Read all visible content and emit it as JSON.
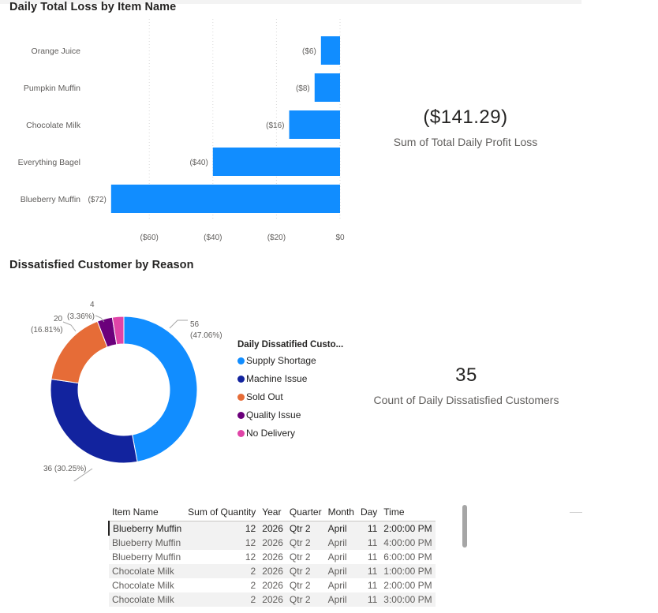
{
  "bar_chart": {
    "title": "Daily Total Loss by Item Name",
    "chart_data": {
      "type": "bar",
      "orientation": "horizontal",
      "categories": [
        "Orange Juice",
        "Pumpkin Muffin",
        "Chocolate Milk",
        "Everything Bagel",
        "Blueberry Muffin"
      ],
      "values": [
        -6,
        -8,
        -16,
        -40,
        -72
      ],
      "data_labels": [
        "($6)",
        "($8)",
        "($16)",
        "($40)",
        "($72)"
      ],
      "x_ticks": [
        -60,
        -40,
        -20,
        0
      ],
      "x_tick_labels": [
        "($60)",
        "($40)",
        "($20)",
        "$0"
      ],
      "xlim": [
        -75,
        0
      ],
      "color": "#118DFF"
    }
  },
  "loss_card": {
    "value": "($141.29)",
    "label": "Sum of Total Daily Profit Loss"
  },
  "donut_chart": {
    "title": "Dissatisfied Customer by Reason",
    "legend_title": "Daily Dissatified Custo...",
    "chart_data": {
      "type": "pie",
      "hole": true,
      "categories": [
        "Supply Shortage",
        "Machine Issue",
        "Sold Out",
        "Quality Issue",
        "No Delivery"
      ],
      "values": [
        56,
        36,
        20,
        4,
        3
      ],
      "colors": [
        "#118DFF",
        "#12239E",
        "#E66C37",
        "#6B007B",
        "#E044A7"
      ]
    },
    "labels": {
      "supply_value": "56",
      "supply_pct": "(47.06%)",
      "machine": "36 (30.25%)",
      "soldout_value": "20",
      "soldout_pct": "(16.81%)",
      "quality_value": "4",
      "quality_pct": "(3.36%)"
    }
  },
  "count_card": {
    "value": "35",
    "label": "Count of Daily Dissatisfied Customers"
  },
  "table": {
    "columns": [
      "Item Name",
      "Sum of Quantity",
      "Year",
      "Quarter",
      "Month",
      "Day",
      "Time"
    ],
    "rows": [
      [
        "Blueberry Muffin",
        "12",
        "2026",
        "Qtr 2",
        "April",
        "11",
        "2:00:00 PM"
      ],
      [
        "Blueberry Muffin",
        "12",
        "2026",
        "Qtr 2",
        "April",
        "11",
        "4:00:00 PM"
      ],
      [
        "Blueberry Muffin",
        "12",
        "2026",
        "Qtr 2",
        "April",
        "11",
        "6:00:00 PM"
      ],
      [
        "Chocolate Milk",
        "2",
        "2026",
        "Qtr 2",
        "April",
        "11",
        "1:00:00 PM"
      ],
      [
        "Chocolate Milk",
        "2",
        "2026",
        "Qtr 2",
        "April",
        "11",
        "2:00:00 PM"
      ],
      [
        "Chocolate Milk",
        "2",
        "2026",
        "Qtr 2",
        "April",
        "11",
        "3:00:00 PM"
      ]
    ]
  }
}
